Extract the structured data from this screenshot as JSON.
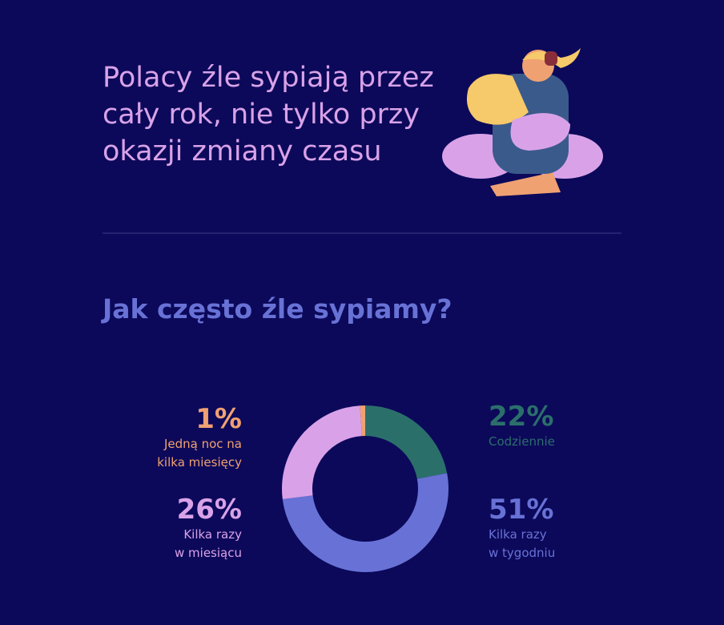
{
  "header": {
    "title": "Polacy źle sypiają przez\ncały rok, nie tylko przy\nokazji zmiany czasu"
  },
  "chart_data": {
    "type": "pie",
    "donut": true,
    "title": "Jak często źle sypiamy?",
    "categories": [
      "Codziennie",
      "Kilka razy\nw tygodniu",
      "Kilka razy\nw miesiącu",
      "Jedną noc na\nkilka miesięcy"
    ],
    "values": [
      22,
      51,
      26,
      1
    ],
    "value_labels": [
      "22%",
      "51%",
      "26%",
      "1%"
    ],
    "colors": [
      "#2b6f6b",
      "#6872d6",
      "#d9a2e8",
      "#f0a172"
    ]
  }
}
